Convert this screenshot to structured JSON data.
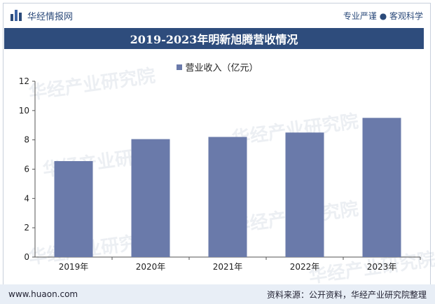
{
  "header": {
    "brand": "华经情报网",
    "slogan": "专业严谨 ● 客观科学"
  },
  "watermark": "华经产业研究院",
  "footer": {
    "website": "www.huaon.com",
    "source": "资料来源：公开资料，华经产业研究院整理"
  },
  "colors": {
    "bar": "#6a7aaa",
    "title_bg": "#2e4c7c",
    "axis": "#555555"
  },
  "chart_data": {
    "type": "bar",
    "title": "2019-2023年明新旭腾营收情况",
    "categories": [
      "2019年",
      "2020年",
      "2021年",
      "2022年",
      "2023年"
    ],
    "series": [
      {
        "name": "营业收入（亿元）",
        "values": [
          6.55,
          8.05,
          8.2,
          8.5,
          9.5
        ]
      }
    ],
    "ylim": [
      0,
      12
    ],
    "yticks": [
      0,
      2,
      4,
      6,
      8,
      10,
      12
    ],
    "xlabel": "",
    "ylabel": "",
    "legend": "top-center",
    "grid": false
  }
}
